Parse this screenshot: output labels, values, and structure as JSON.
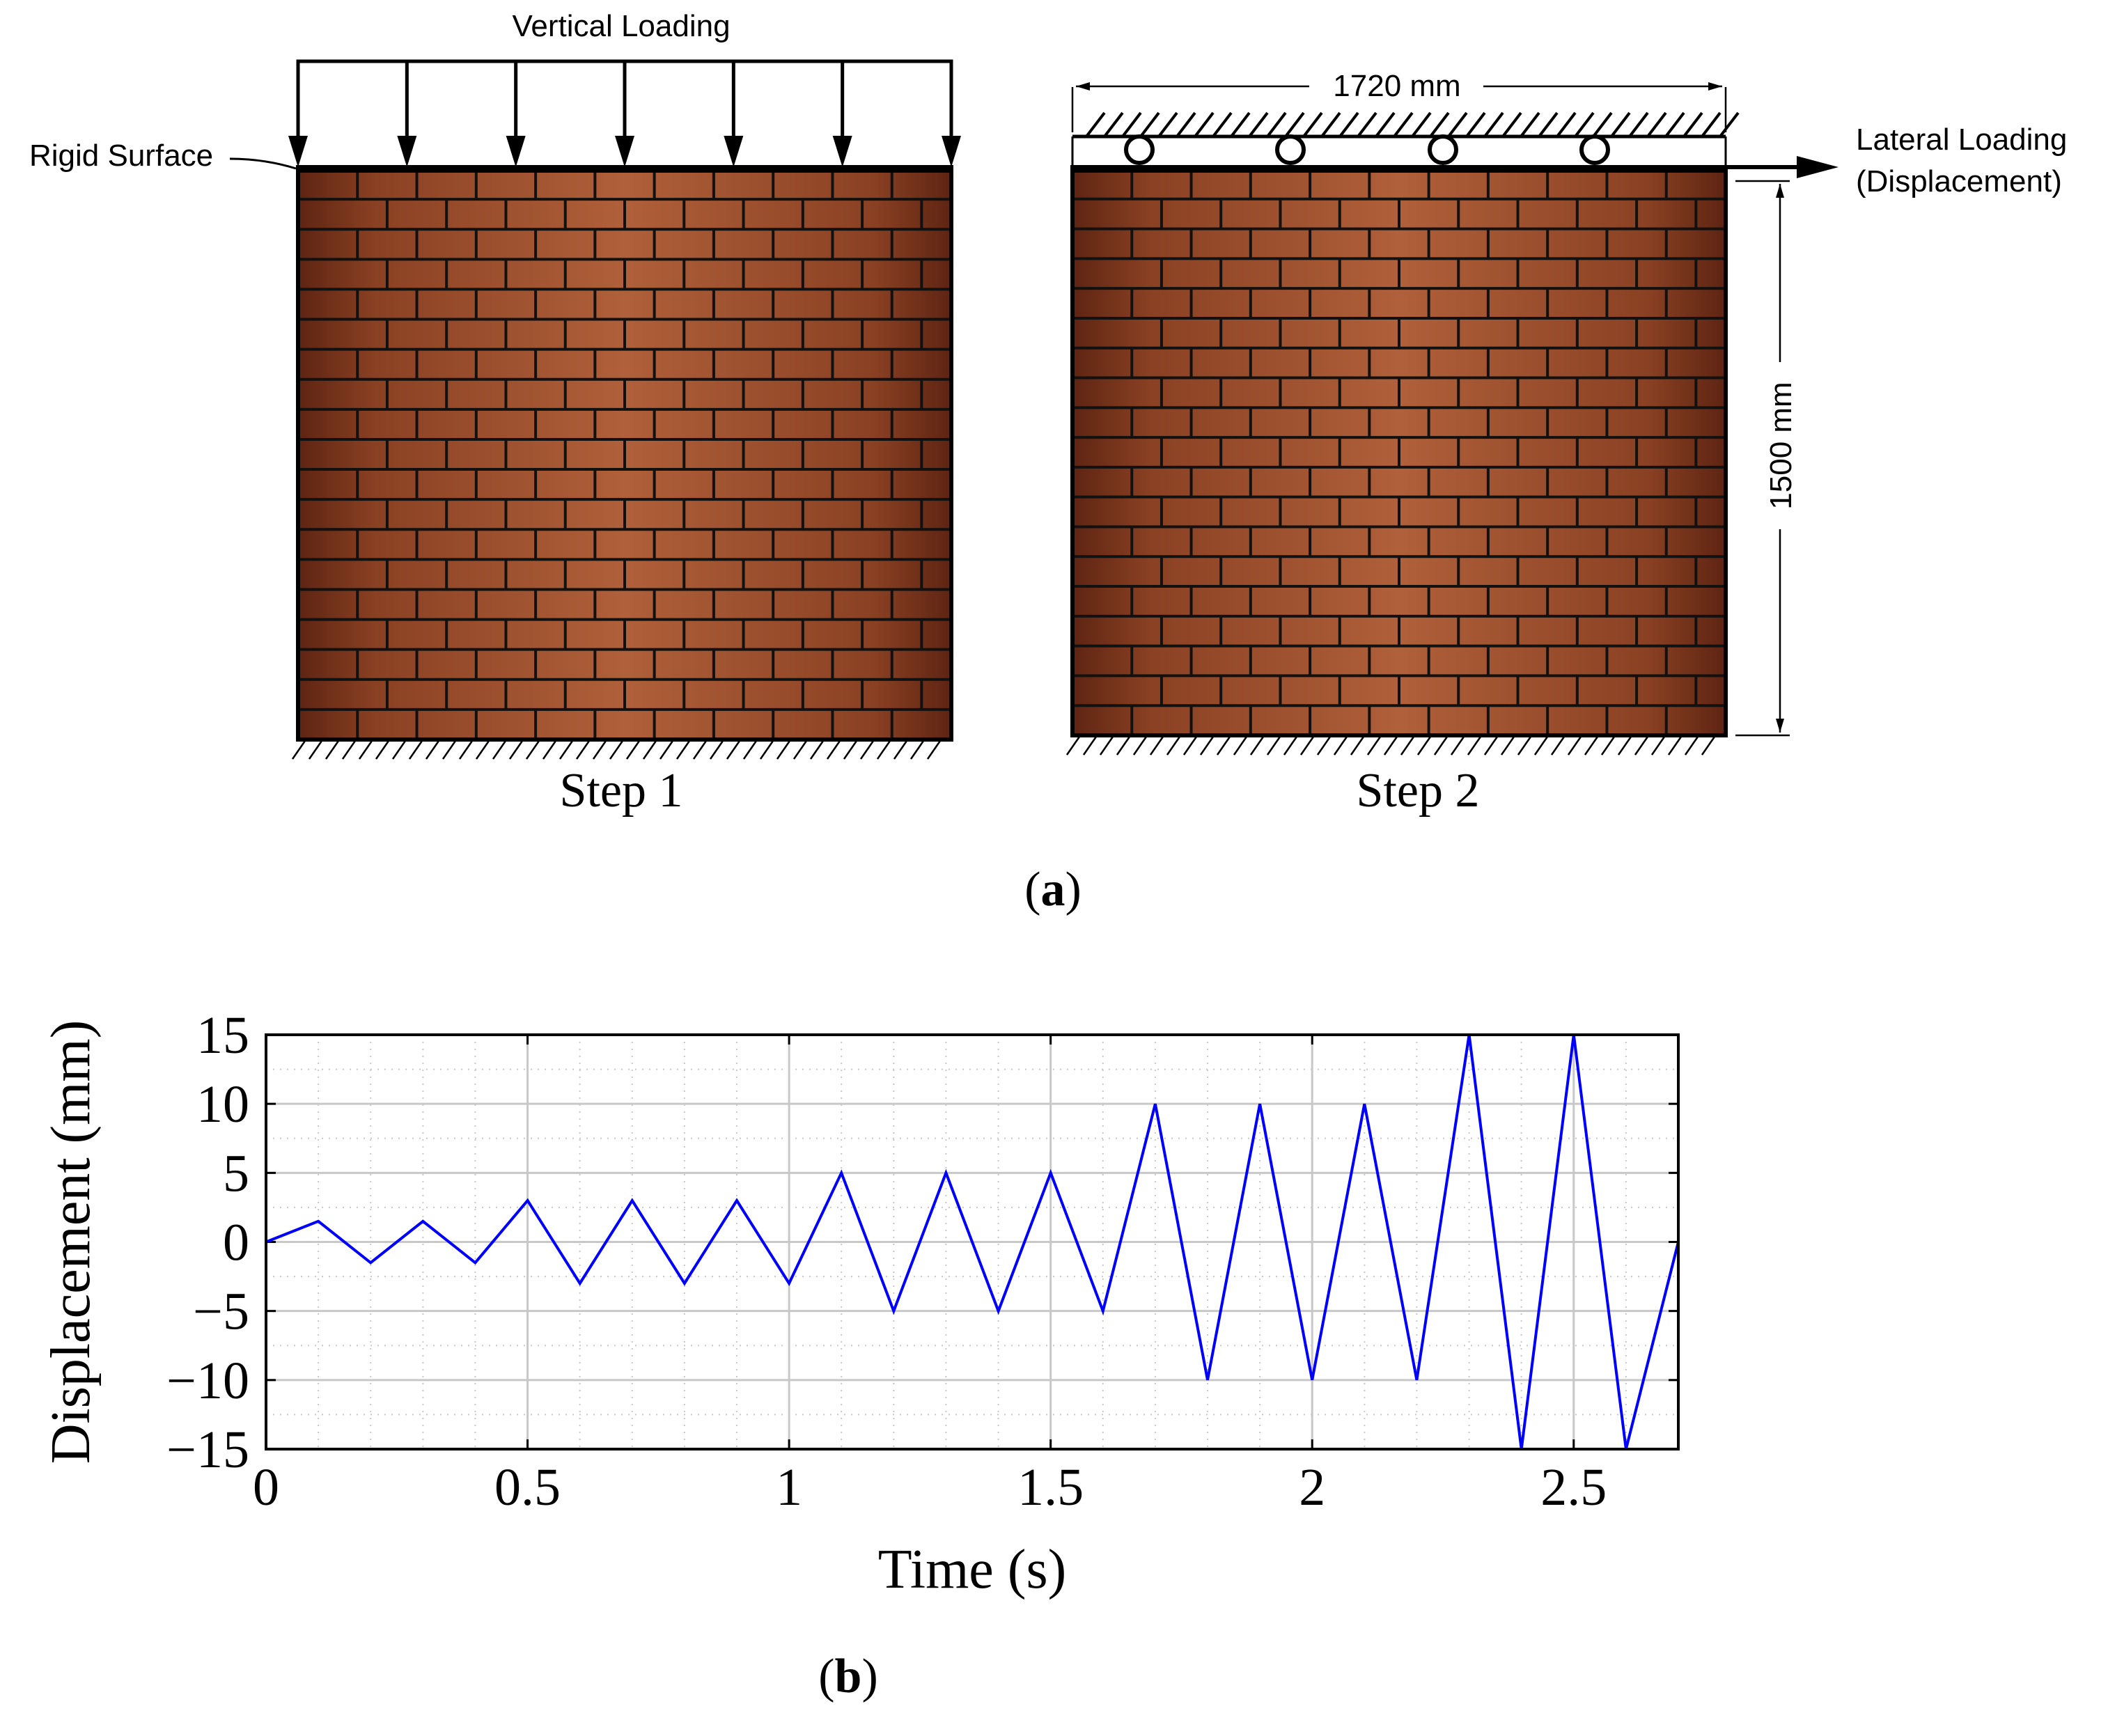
{
  "figure_a": {
    "vertical_loading": "Vertical Loading",
    "rigid_surface": "Rigid Surface",
    "width_dim": "1720 mm",
    "height_dim": "1500 mm",
    "lateral_loading_line1": "Lateral Loading",
    "lateral_loading_line2": "(Displacement)",
    "step1": "Step 1",
    "step2": "Step 2",
    "caption_open": "(",
    "caption_letter": "a",
    "caption_close": ")"
  },
  "figure_b": {
    "caption_open": "(",
    "caption_letter": "b",
    "caption_close": ")"
  },
  "chart_data": {
    "type": "line",
    "title": "",
    "xlabel": "Time (s)",
    "ylabel": "Displacement (mm)",
    "xlim": [
      0,
      2.7
    ],
    "ylim": [
      -15,
      15
    ],
    "xticks": [
      0,
      0.5,
      1,
      1.5,
      2,
      2.5
    ],
    "xtick_labels": [
      "0",
      "0.5",
      "1",
      "1.5",
      "2",
      "2.5"
    ],
    "yticks": [
      15,
      10,
      5,
      0,
      -5,
      -10,
      -15
    ],
    "ytick_labels": [
      "15",
      "10",
      "5",
      "0",
      "−5",
      "−10",
      "−15"
    ],
    "grid": true,
    "series": [
      {
        "color": "#0000ff",
        "x": [
          0,
          0.1,
          0.2,
          0.3,
          0.4,
          0.5,
          0.6,
          0.7,
          0.8,
          0.9,
          1.0,
          1.1,
          1.2,
          1.3,
          1.4,
          1.5,
          1.6,
          1.7,
          1.8,
          1.9,
          2.0,
          2.1,
          2.2,
          2.3,
          2.4,
          2.5,
          2.6,
          2.7
        ],
        "y": [
          0,
          1.5,
          -1.5,
          1.5,
          -1.5,
          3,
          -3,
          3,
          -3,
          3,
          -3,
          5,
          -5,
          5,
          -5,
          5,
          -5,
          10,
          -10,
          10,
          -10,
          10,
          -10,
          15,
          -15,
          15,
          -15,
          0
        ]
      }
    ]
  },
  "colors": {
    "brick_dark": "#6b2a15",
    "brick_mid": "#a65a33",
    "brick_light": "#b8683c",
    "mortar": "#111111",
    "line": "#0000ff",
    "grid": "#c8c8c8"
  }
}
